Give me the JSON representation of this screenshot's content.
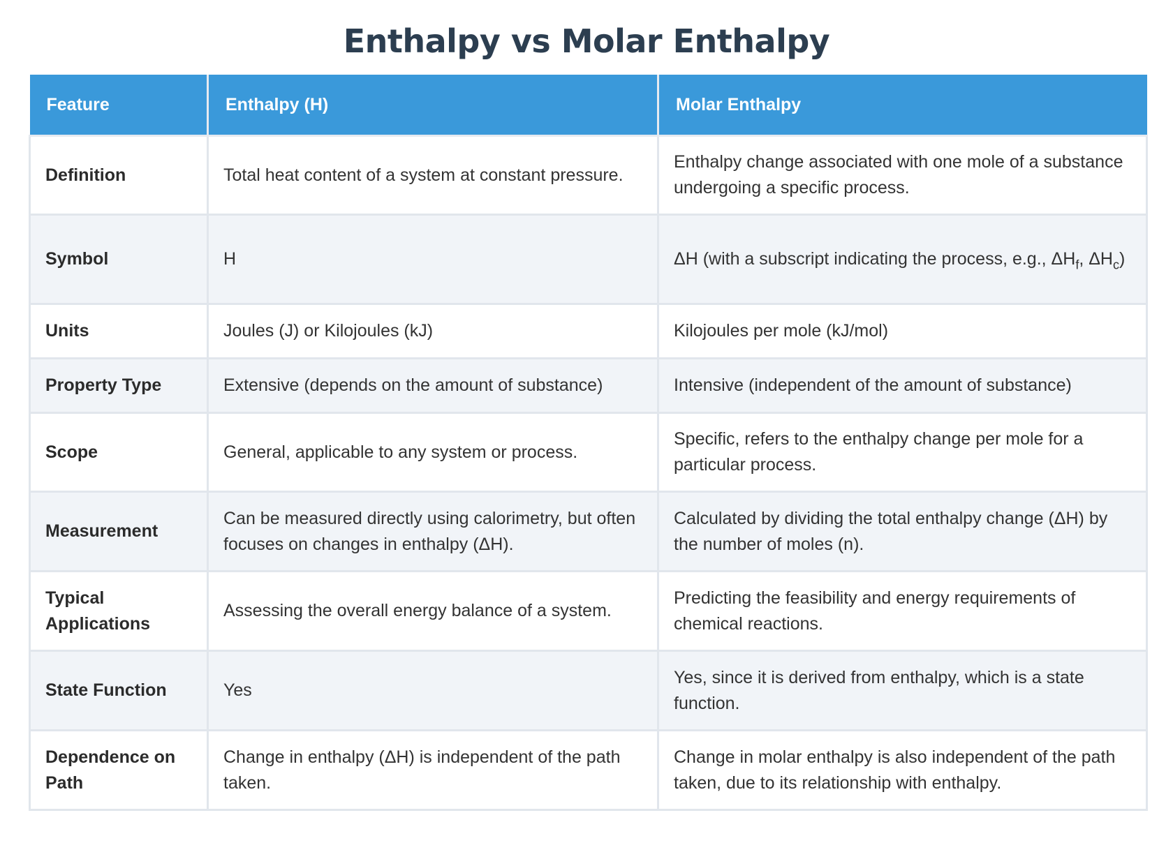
{
  "title": "Enthalpy vs Molar Enthalpy",
  "columns": [
    "Feature",
    "Enthalpy (H)",
    "Molar Enthalpy"
  ],
  "rows": [
    {
      "feature": "Definition",
      "enthalpy": "Total heat content of a system at constant pressure.",
      "molar": "Enthalpy change associated with one mole of a substance undergoing a specific process."
    },
    {
      "feature": "Symbol",
      "enthalpy": "H",
      "molar_parts": {
        "prefix": "ΔH (with a subscript indicating the process, e.g., ΔH",
        "sub1": "f",
        "middle": ", ΔH",
        "sub2": "c",
        "suffix": ")"
      }
    },
    {
      "feature": "Units",
      "enthalpy": "Joules (J) or Kilojoules (kJ)",
      "molar": "Kilojoules per mole (kJ/mol)"
    },
    {
      "feature": "Property Type",
      "enthalpy": "Extensive (depends on the amount of substance)",
      "molar": "Intensive (independent of the amount of substance)"
    },
    {
      "feature": "Scope",
      "enthalpy": "General, applicable to any system or process.",
      "molar": "Specific, refers to the enthalpy change per mole for a particular process."
    },
    {
      "feature": "Measurement",
      "enthalpy": "Can be measured directly using calorimetry, but often focuses on changes in enthalpy (ΔH).",
      "molar": "Calculated by dividing the total enthalpy change (ΔH) by the number of moles (n)."
    },
    {
      "feature": "Typical Applications",
      "enthalpy": "Assessing the overall energy balance of a system.",
      "molar": "Predicting the feasibility and energy requirements of chemical reactions."
    },
    {
      "feature": "State Function",
      "enthalpy": "Yes",
      "molar": "Yes, since it is derived from enthalpy, which is a state function."
    },
    {
      "feature": "Dependence on Path",
      "enthalpy": "Change in enthalpy (ΔH) is independent of the path taken.",
      "molar": "Change in molar enthalpy is also independent of the path taken, due to its relationship with enthalpy."
    }
  ],
  "colors": {
    "title": "#2c3e50",
    "header_bg": "#3a99da",
    "header_text": "#ffffff",
    "row_odd": "#ffffff",
    "row_even": "#f1f4f8",
    "border": "#e1e6ec"
  }
}
